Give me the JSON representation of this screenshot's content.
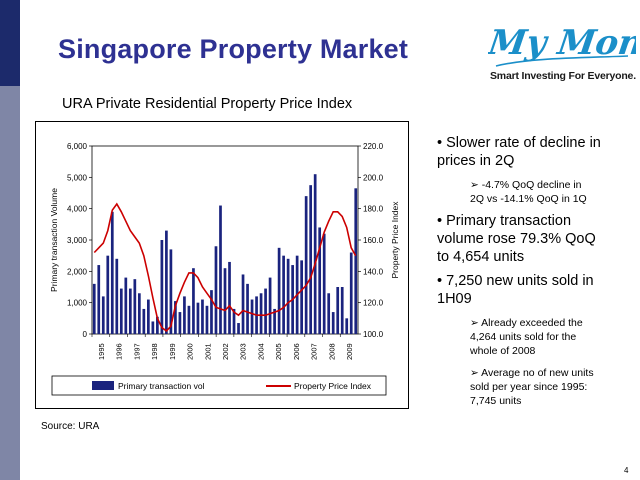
{
  "slide": {
    "title": "Singapore Property Market",
    "page_number": "4",
    "source": "Source: URA"
  },
  "logo": {
    "text": "My Money",
    "tagline": "Smart Investing For Everyone."
  },
  "chart_heading": "URA Private Residential Property Price Index",
  "bullets": [
    {
      "text_lines": [
        "Slower rate of decline in",
        "prices in 2Q"
      ],
      "subs": [
        {
          "text_lines": [
            "-4.7% QoQ decline in",
            "2Q vs -14.1% QoQ in 1Q"
          ]
        }
      ]
    },
    {
      "text_lines": [
        "Primary transaction",
        "volume rose 79.3% QoQ",
        "to 4,654 units"
      ],
      "subs": []
    },
    {
      "text_lines": [
        "7,250 new units sold in",
        "1H09"
      ],
      "subs": [
        {
          "text_lines": [
            "Already exceeded the",
            "4,264 units sold for the",
            "whole of 2008"
          ]
        },
        {
          "text_lines": [
            "Average no of new units",
            "sold per year since 1995:",
            "7,745 units"
          ]
        }
      ]
    }
  ],
  "chart_data": {
    "type": "bar",
    "title": "",
    "x_tick_labels": [
      "1995",
      "1996",
      "1997",
      "1998",
      "1999",
      "2000",
      "2001",
      "2002",
      "2003",
      "2004",
      "2005",
      "2006",
      "2007",
      "2008",
      "2009"
    ],
    "ylabel_left": "Primary transaction Volume",
    "ylabel_right": "Property Price Index",
    "y_left_ticks": [
      "0",
      "1,000",
      "2,000",
      "3,000",
      "4,000",
      "5,000",
      "6,000"
    ],
    "y_right_ticks": [
      "100.0",
      "120.0",
      "140.0",
      "160.0",
      "180.0",
      "200.0",
      "220.0"
    ],
    "ylim_left": [
      0,
      6000
    ],
    "ylim_right": [
      100,
      220
    ],
    "legend": {
      "placement": "bottom",
      "bar_label": "Primary transaction vol",
      "line_label": "Property Price Index"
    },
    "colors": {
      "bar": "#1a237e",
      "line": "#cc0000"
    },
    "series": [
      {
        "name": "Primary transaction vol",
        "type": "bar",
        "axis": "left",
        "values": [
          1600,
          2200,
          1200,
          2500,
          3900,
          2400,
          1450,
          1800,
          1450,
          1750,
          1300,
          800,
          1100,
          400,
          550,
          3000,
          3300,
          2700,
          1050,
          700,
          1200,
          900,
          2100,
          1000,
          1100,
          900,
          1400,
          2800,
          4100,
          2100,
          2300,
          800,
          350,
          1900,
          1600,
          1100,
          1200,
          1300,
          1450,
          1800,
          800,
          2750,
          2500,
          2400,
          2200,
          2500,
          2350,
          4400,
          4750,
          5100,
          3400,
          3200,
          1300,
          700,
          1500,
          1500,
          500,
          2600,
          4650
        ]
      },
      {
        "name": "Property Price Index",
        "type": "line",
        "axis": "right",
        "values": [
          152,
          155,
          158,
          166,
          179,
          183,
          178,
          172,
          166,
          162,
          158,
          150,
          137,
          123,
          110,
          104,
          102,
          105,
          118,
          126,
          133,
          139,
          139,
          136,
          130,
          126,
          122,
          117,
          116,
          115,
          118,
          114,
          112,
          115,
          114,
          113,
          112,
          112,
          112,
          113,
          114,
          115,
          117,
          120,
          122,
          125,
          128,
          131,
          136,
          145,
          155,
          165,
          172,
          178,
          178,
          175,
          168,
          155,
          150
        ]
      }
    ]
  }
}
